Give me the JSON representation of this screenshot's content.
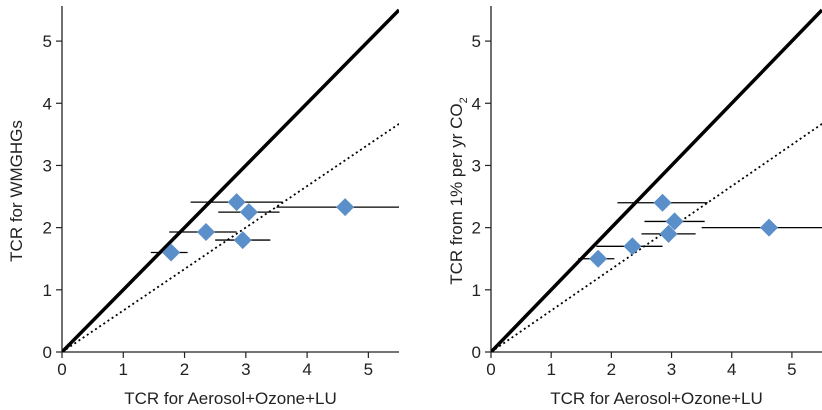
{
  "chart_data": [
    {
      "type": "scatter",
      "xlabel": "TCR for Aerosol+Ozone+LU",
      "ylabel": "TCR for WMGHGs",
      "xlim": [
        0,
        5.5
      ],
      "ylim": [
        0,
        5.5
      ],
      "xticks": [
        "0",
        "1",
        "2",
        "3",
        "4",
        "5"
      ],
      "yticks": [
        "0",
        "1",
        "2",
        "3",
        "4",
        "5"
      ],
      "grid": false,
      "marker_color": "#5b8fc9",
      "lines": [
        {
          "style": "solid",
          "slope": 1.0
        },
        {
          "style": "dotted",
          "slope": 0.667
        }
      ],
      "points": [
        {
          "x": 1.78,
          "y": 1.6,
          "xerr_lo": 1.45,
          "xerr_hi": 2.05
        },
        {
          "x": 2.35,
          "y": 1.93,
          "xerr_lo": 1.75,
          "xerr_hi": 2.85
        },
        {
          "x": 2.85,
          "y": 2.41,
          "xerr_lo": 2.1,
          "xerr_hi": 3.6
        },
        {
          "x": 3.05,
          "y": 2.25,
          "xerr_lo": 2.55,
          "xerr_hi": 3.55
        },
        {
          "x": 2.95,
          "y": 1.8,
          "xerr_lo": 2.5,
          "xerr_hi": 3.4
        },
        {
          "x": 4.62,
          "y": 2.33,
          "xerr_lo": 3.5,
          "xerr_hi": 5.5
        }
      ]
    },
    {
      "type": "scatter",
      "xlabel": "TCR for Aerosol+Ozone+LU",
      "ylabel": "TCR from 1% per yr CO",
      "ylabel_subscript": "2",
      "xlim": [
        0,
        5.5
      ],
      "ylim": [
        0,
        5.5
      ],
      "xticks": [
        "0",
        "1",
        "2",
        "3",
        "4",
        "5"
      ],
      "yticks": [
        "0",
        "1",
        "2",
        "3",
        "4",
        "5"
      ],
      "grid": false,
      "marker_color": "#5b8fc9",
      "lines": [
        {
          "style": "solid",
          "slope": 1.0
        },
        {
          "style": "dotted",
          "slope": 0.667
        }
      ],
      "points": [
        {
          "x": 1.78,
          "y": 1.5,
          "xerr_lo": 1.45,
          "xerr_hi": 2.05
        },
        {
          "x": 2.35,
          "y": 1.7,
          "xerr_lo": 1.75,
          "xerr_hi": 2.85
        },
        {
          "x": 2.85,
          "y": 2.4,
          "xerr_lo": 2.1,
          "xerr_hi": 3.6
        },
        {
          "x": 3.05,
          "y": 2.1,
          "xerr_lo": 2.55,
          "xerr_hi": 3.55
        },
        {
          "x": 2.95,
          "y": 1.9,
          "xerr_lo": 2.5,
          "xerr_hi": 3.4
        },
        {
          "x": 4.62,
          "y": 2.0,
          "xerr_lo": 3.5,
          "xerr_hi": 5.5
        }
      ]
    }
  ]
}
